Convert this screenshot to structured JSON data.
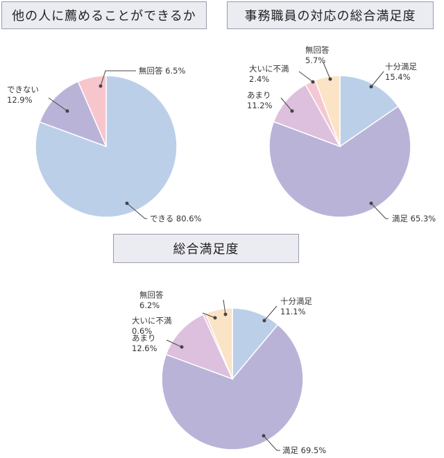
{
  "titles": {
    "recommend": "他の人に薦めることができるか",
    "staff": "事務職員の対応の総合満足度",
    "overall": "総合満足度"
  },
  "colors": {
    "blue": "#bccfe9",
    "purple": "#bab3d8",
    "pink": "#f6c6cc",
    "lilac": "#dcc0dd",
    "lightpink": "#f4c8d3",
    "peach": "#fbe3c5"
  },
  "chart_data": [
    {
      "type": "pie",
      "title": "他の人に薦めることができるか",
      "slices": [
        {
          "label": "できる",
          "value": 80.6,
          "display": "80.6%",
          "color": "#bccfe9"
        },
        {
          "label": "できない",
          "value": 12.9,
          "display": "12.9%",
          "color": "#bab3d8"
        },
        {
          "label": "無回答",
          "value": 6.5,
          "display": "6.5%",
          "color": "#f6c6cc"
        }
      ]
    },
    {
      "type": "pie",
      "title": "事務職員の対応の総合満足度",
      "slices": [
        {
          "label": "十分満足",
          "value": 15.4,
          "display": "15.4%",
          "color": "#bccfe9"
        },
        {
          "label": "満足",
          "value": 65.3,
          "display": "65.3%",
          "color": "#bab3d8"
        },
        {
          "label": "あまり",
          "value": 11.2,
          "display": "11.2%",
          "color": "#dcc0dd"
        },
        {
          "label": "大いに不満",
          "value": 2.4,
          "display": "2.4%",
          "color": "#f4c8d3"
        },
        {
          "label": "無回答",
          "value": 5.7,
          "display": "5.7%",
          "color": "#fbe3c5"
        }
      ]
    },
    {
      "type": "pie",
      "title": "総合満足度",
      "slices": [
        {
          "label": "十分満足",
          "value": 11.1,
          "display": "11.1%",
          "color": "#bccfe9"
        },
        {
          "label": "満足",
          "value": 69.5,
          "display": "69.5%",
          "color": "#bab3d8"
        },
        {
          "label": "あまり",
          "value": 12.6,
          "display": "12.6%",
          "color": "#dcc0dd"
        },
        {
          "label": "大いに不満",
          "value": 0.6,
          "display": "0.6%",
          "color": "#f4c8d3"
        },
        {
          "label": "無回答",
          "value": 6.2,
          "display": "6.2%",
          "color": "#fbe3c5"
        }
      ]
    }
  ]
}
